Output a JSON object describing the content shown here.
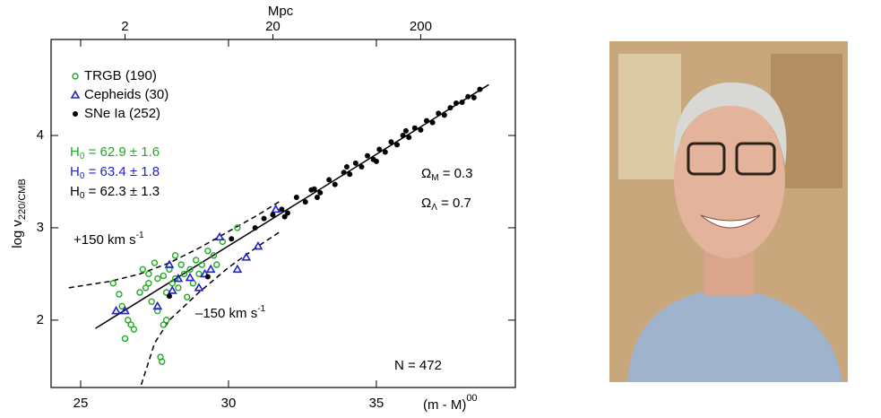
{
  "chart_data": {
    "type": "scatter",
    "x_label": "(m - M)",
    "x_label_sup": "00",
    "y_label": "log v",
    "y_label_sub": "220/CMB",
    "x2_label": "Mpc",
    "xlim": [
      24,
      39.7
    ],
    "ylim": [
      1.27,
      5.04
    ],
    "xticks": [
      25,
      30,
      35
    ],
    "yticks": [
      2,
      3,
      4
    ],
    "x2ticks": [
      {
        "value": 26.5,
        "label": "2"
      },
      {
        "value": 31.5,
        "label": "20"
      },
      {
        "value": 36.5,
        "label": "200"
      }
    ],
    "legend": "upper left",
    "series": [
      {
        "name": "TRGB (190)",
        "color": "#22aa22",
        "marker": "open-circle",
        "x": [
          26.1,
          26.3,
          26.4,
          26.5,
          26.6,
          26.8,
          27.0,
          27.1,
          27.2,
          27.3,
          27.4,
          27.5,
          27.6,
          27.7,
          27.8,
          27.9,
          28.0,
          28.1,
          28.2,
          28.3,
          28.4,
          28.5,
          28.6,
          28.7,
          28.8,
          28.9,
          29.0,
          29.1,
          29.3,
          29.5,
          29.8,
          27.6,
          27.9,
          28.2,
          27.3,
          26.7,
          29.6,
          30.3,
          27.75,
          27.8
        ],
        "values": [
          2.4,
          2.28,
          2.15,
          1.8,
          2.0,
          1.9,
          2.3,
          2.55,
          2.35,
          2.5,
          2.2,
          2.62,
          2.45,
          1.6,
          2.48,
          2.3,
          2.55,
          2.4,
          2.7,
          2.35,
          2.6,
          2.5,
          2.25,
          2.55,
          2.4,
          2.65,
          2.5,
          2.6,
          2.75,
          2.7,
          2.85,
          2.1,
          2.0,
          2.45,
          2.4,
          1.95,
          2.6,
          3.0,
          1.55,
          1.95
        ]
      },
      {
        "name": "Cepheids (30)",
        "color": "#2222cc",
        "marker": "triangle",
        "x": [
          26.2,
          26.5,
          27.6,
          28.0,
          28.3,
          28.7,
          29.0,
          29.4,
          29.7,
          30.3,
          30.6,
          31.0,
          31.6,
          28.1,
          29.2
        ],
        "values": [
          2.1,
          2.1,
          2.15,
          2.6,
          2.45,
          2.46,
          2.35,
          2.55,
          2.9,
          2.55,
          2.68,
          2.8,
          3.2,
          2.32,
          2.5
        ]
      },
      {
        "name": "SNe Ia (252)",
        "color": "#000000",
        "marker": "dot",
        "x": [
          28.0,
          29.3,
          30.1,
          30.9,
          31.2,
          31.5,
          31.8,
          32.0,
          32.3,
          32.6,
          32.9,
          33.1,
          33.4,
          33.6,
          33.9,
          34.1,
          34.3,
          34.5,
          34.7,
          34.9,
          35.1,
          35.3,
          35.5,
          35.7,
          35.9,
          36.1,
          36.3,
          36.5,
          36.7,
          36.9,
          37.1,
          37.3,
          37.5,
          37.7,
          37.9,
          38.1,
          38.3,
          38.5,
          33.0,
          34.0,
          35.0,
          36.0,
          32.8,
          31.9
        ],
        "values": [
          2.26,
          2.47,
          2.88,
          3.0,
          3.1,
          3.14,
          3.2,
          3.16,
          3.33,
          3.28,
          3.42,
          3.38,
          3.52,
          3.47,
          3.6,
          3.58,
          3.7,
          3.66,
          3.78,
          3.74,
          3.85,
          3.82,
          3.93,
          3.9,
          4.0,
          3.98,
          4.08,
          4.06,
          4.16,
          4.14,
          4.24,
          4.22,
          4.3,
          4.35,
          4.36,
          4.42,
          4.41,
          4.5,
          3.33,
          3.66,
          3.72,
          4.05,
          3.41,
          3.12
        ]
      }
    ],
    "curves": [
      {
        "style": "solid",
        "x": [
          25.5,
          38.8
        ],
        "values": [
          1.91,
          4.55
        ]
      },
      {
        "style": "dashed",
        "x": [
          24.6,
          26,
          27,
          28,
          29,
          30,
          31,
          31.8
        ],
        "values": [
          2.35,
          2.42,
          2.5,
          2.62,
          2.78,
          2.96,
          3.14,
          3.3
        ]
      },
      {
        "style": "dashed",
        "x": [
          27.05,
          27.5,
          28,
          29,
          30,
          31,
          31.8
        ],
        "values": [
          1.3,
          1.75,
          2.0,
          2.3,
          2.57,
          2.8,
          2.97
        ]
      }
    ],
    "annotations": [
      {
        "text": "H",
        "sub": "0",
        "rest": " = 62.9 ± 1.6",
        "color": "#22aa22"
      },
      {
        "text": "H",
        "sub": "0",
        "rest": " = 63.4 ± 1.8",
        "color": "#2222cc"
      },
      {
        "text": "H",
        "sub": "0",
        "rest": " = 62.3 ± 1.3",
        "color": "#000000"
      },
      {
        "text": "Ω",
        "sub": "M",
        "rest": " = 0.3",
        "color": "#000000"
      },
      {
        "text": "Ω",
        "sub": "Λ",
        "rest": " = 0.7",
        "color": "#000000"
      },
      {
        "text": "+150 km s",
        "sup": "-1",
        "color": "#000000"
      },
      {
        "text": "–150 km s",
        "sup": "-1",
        "color": "#000000"
      },
      {
        "text": "N = 472",
        "color": "#000000"
      }
    ]
  }
}
